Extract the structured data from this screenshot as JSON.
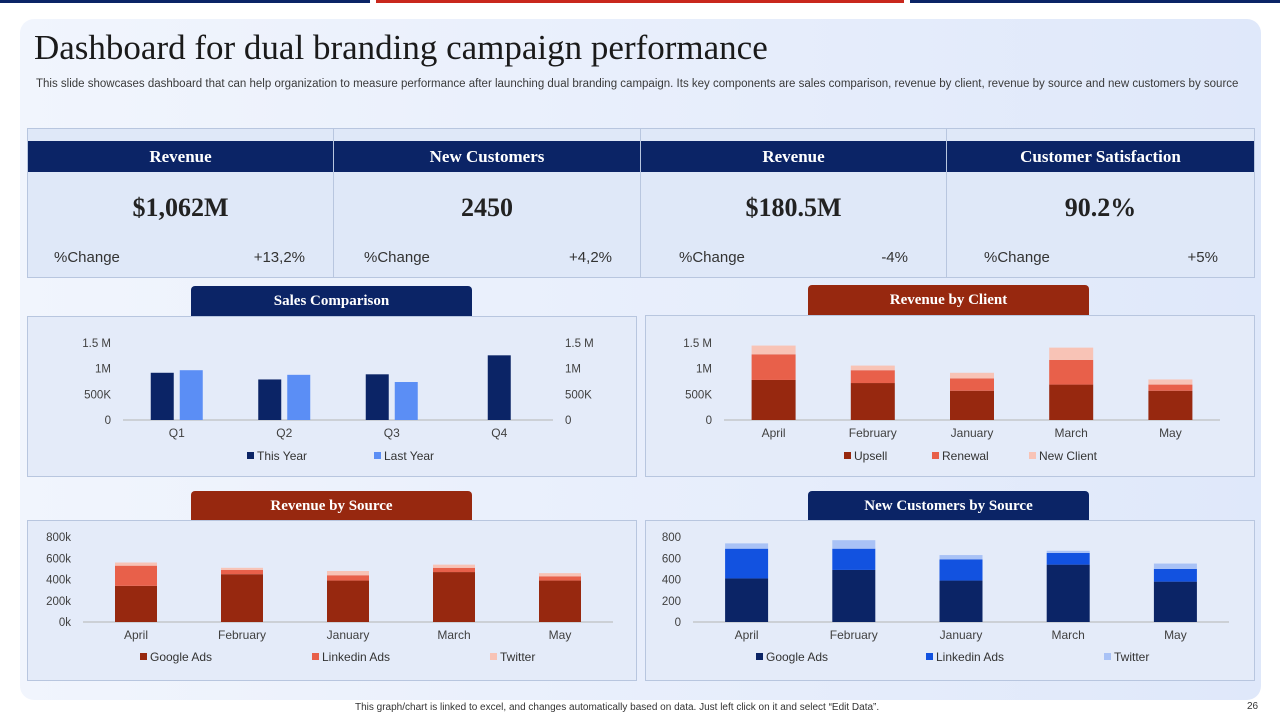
{
  "colors": {
    "navy": "#0b2466",
    "rust": "#97280f",
    "accent_red": "#c9281c"
  },
  "header": {
    "title": "Dashboard for dual branding campaign performance",
    "subtitle": "This slide showcases dashboard that can help organization to measure performance after launching dual branding campaign. Its key components are sales comparison, revenue by client, revenue by source and new customers by source"
  },
  "kpis": [
    {
      "title": "Revenue",
      "value": "$1,062M",
      "change_label": "%Change",
      "change": "+13,2%"
    },
    {
      "title": "New Customers",
      "value": "2450",
      "change_label": "%Change",
      "change": "+4,2%"
    },
    {
      "title": "Revenue",
      "value": "$180.5M",
      "change_label": "%Change",
      "change": "-4%"
    },
    {
      "title": "Customer Satisfaction",
      "value": "90.2%",
      "change_label": "%Change",
      "change": "+5%"
    }
  ],
  "footer": {
    "note": "This graph/chart is linked to excel, and changes automatically based on data. Just left click on it and select “Edit Data”.",
    "page": "26"
  },
  "chart_data": [
    {
      "id": "sales",
      "type": "bar",
      "title": "Sales Comparison",
      "categories": [
        "Q1",
        "Q2",
        "Q3",
        "Q4"
      ],
      "series": [
        {
          "name": "This Year",
          "values": [
            920000,
            790000,
            890000,
            1260000
          ],
          "color": "#0b2466"
        },
        {
          "name": "Last Year",
          "values": [
            970000,
            880000,
            740000,
            null
          ],
          "color": "#5b8ef5"
        }
      ],
      "ylim": [
        0,
        1500000
      ],
      "yticks": [
        0,
        500000,
        1000000,
        1500000
      ],
      "ytick_labels": [
        "0",
        "500K",
        "1M",
        "1.5 M"
      ],
      "right_axis_labels": [
        "0",
        "500K",
        "1M",
        "1.5 M"
      ],
      "legend": "bottom"
    },
    {
      "id": "client",
      "type": "bar",
      "stacked": true,
      "title": "Revenue by Client",
      "categories": [
        "April",
        "February",
        "January",
        "March",
        "May"
      ],
      "series": [
        {
          "name": "Upsell",
          "values": [
            780000,
            720000,
            570000,
            690000,
            570000
          ],
          "color": "#97280f"
        },
        {
          "name": "Renewal",
          "values": [
            500000,
            250000,
            240000,
            480000,
            120000
          ],
          "color": "#e8604a"
        },
        {
          "name": "New Client",
          "values": [
            170000,
            90000,
            110000,
            240000,
            100000
          ],
          "color": "#f8c3b6"
        }
      ],
      "ylim": [
        0,
        1500000
      ],
      "yticks": [
        0,
        500000,
        1000000,
        1500000
      ],
      "ytick_labels": [
        "0",
        "500K",
        "1M",
        "1.5 M"
      ],
      "legend": "bottom"
    },
    {
      "id": "source",
      "type": "bar",
      "stacked": true,
      "title": "Revenue by Source",
      "categories": [
        "April",
        "February",
        "January",
        "March",
        "May"
      ],
      "series": [
        {
          "name": "Google Ads",
          "values": [
            340000,
            450000,
            390000,
            470000,
            390000
          ],
          "color": "#97280f"
        },
        {
          "name": "Linkedin Ads",
          "values": [
            190000,
            40000,
            50000,
            40000,
            40000
          ],
          "color": "#e8604a"
        },
        {
          "name": "Twitter",
          "values": [
            30000,
            20000,
            40000,
            30000,
            30000
          ],
          "color": "#f8c3b6"
        }
      ],
      "ylim": [
        0,
        800000
      ],
      "yticks": [
        0,
        200000,
        400000,
        600000,
        800000
      ],
      "ytick_labels": [
        "0k",
        "200k",
        "400k",
        "600k",
        "800k"
      ],
      "legend": "bottom"
    },
    {
      "id": "newcust",
      "type": "bar",
      "stacked": true,
      "title": "New Customers  by Source",
      "categories": [
        "April",
        "February",
        "January",
        "March",
        "May"
      ],
      "series": [
        {
          "name": "Google Ads",
          "values": [
            410,
            490,
            390,
            540,
            380
          ],
          "color": "#0b2466"
        },
        {
          "name": "Linkedin Ads",
          "values": [
            280,
            200,
            200,
            110,
            120
          ],
          "color": "#1252e0"
        },
        {
          "name": "Twitter",
          "values": [
            50,
            80,
            40,
            20,
            50
          ],
          "color": "#a9c2f6"
        }
      ],
      "ylim": [
        0,
        800
      ],
      "yticks": [
        0,
        200,
        400,
        600,
        800
      ],
      "ytick_labels": [
        "0",
        "200",
        "400",
        "600",
        "800"
      ],
      "legend": "bottom"
    }
  ]
}
